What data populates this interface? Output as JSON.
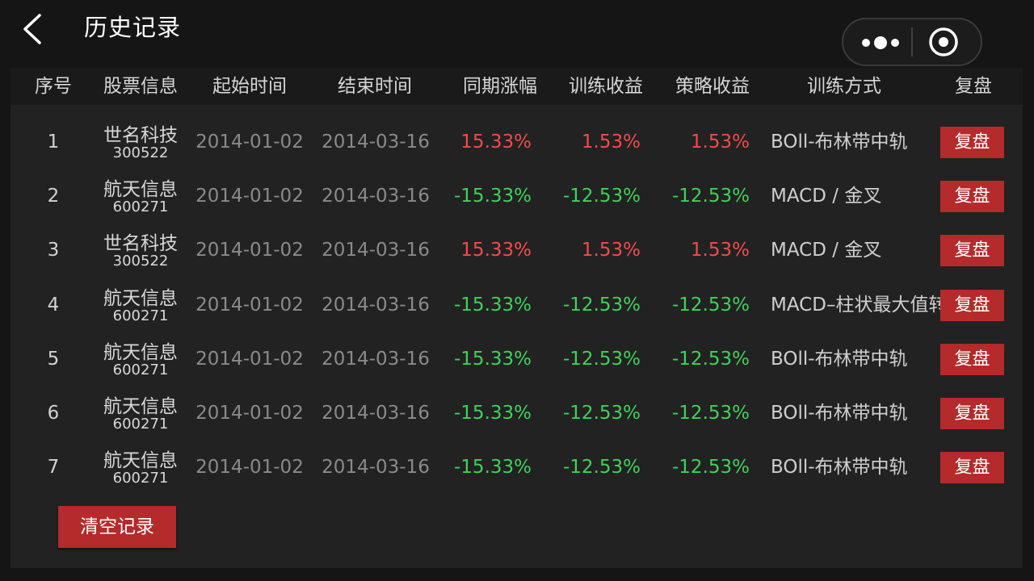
{
  "header": {
    "title": "历史记录",
    "back_icon": "chevron-left-icon",
    "more_icon": "more-dots-icon",
    "close_icon": "target-close-icon"
  },
  "table": {
    "columns": [
      "序号",
      "股票信息",
      "起始时间",
      "结束时间",
      "同期涨幅",
      "训练收益",
      "策略收益",
      "训练方式",
      "复盘"
    ],
    "rows": [
      {
        "index": "1",
        "name": "世名科技",
        "code": "300522",
        "start": "2014-01-02",
        "end": "2014-03-16",
        "period_change": "15.33%",
        "train_return": "1.53%",
        "strategy_return": "1.53%",
        "method": "BOll-布林带中轨",
        "action": "复盘",
        "trend": "up"
      },
      {
        "index": "2",
        "name": "航天信息",
        "code": "600271",
        "start": "2014-01-02",
        "end": "2014-03-16",
        "period_change": "-15.33%",
        "train_return": "-12.53%",
        "strategy_return": "-12.53%",
        "method": "MACD / 金叉",
        "action": "复盘",
        "trend": "down"
      },
      {
        "index": "3",
        "name": "世名科技",
        "code": "300522",
        "start": "2014-01-02",
        "end": "2014-03-16",
        "period_change": "15.33%",
        "train_return": "1.53%",
        "strategy_return": "1.53%",
        "method": "MACD / 金叉",
        "action": "复盘",
        "trend": "up"
      },
      {
        "index": "4",
        "name": "航天信息",
        "code": "600271",
        "start": "2014-01-02",
        "end": "2014-03-16",
        "period_change": "-15.33%",
        "train_return": "-12.53%",
        "strategy_return": "-12.53%",
        "method": "MACD–柱状最大值转",
        "action": "复盘",
        "trend": "down"
      },
      {
        "index": "5",
        "name": "航天信息",
        "code": "600271",
        "start": "2014-01-02",
        "end": "2014-03-16",
        "period_change": "-15.33%",
        "train_return": "-12.53%",
        "strategy_return": "-12.53%",
        "method": "BOll-布林带中轨",
        "action": "复盘",
        "trend": "down"
      },
      {
        "index": "6",
        "name": "航天信息",
        "code": "600271",
        "start": "2014-01-02",
        "end": "2014-03-16",
        "period_change": "-15.33%",
        "train_return": "-12.53%",
        "strategy_return": "-12.53%",
        "method": "BOll-布林带中轨",
        "action": "复盘",
        "trend": "down"
      },
      {
        "index": "7",
        "name": "航天信息",
        "code": "600271",
        "start": "2014-01-02",
        "end": "2014-03-16",
        "period_change": "-15.33%",
        "train_return": "-12.53%",
        "strategy_return": "-12.53%",
        "method": "BOll-布林带中轨",
        "action": "复盘",
        "trend": "down"
      }
    ]
  },
  "footer": {
    "clear_label": "清空记录"
  },
  "colors": {
    "positive": "#f24b4b",
    "negative": "#3fd15b",
    "button": "#b52a2a",
    "background": "#151515",
    "panel": "#222222"
  }
}
